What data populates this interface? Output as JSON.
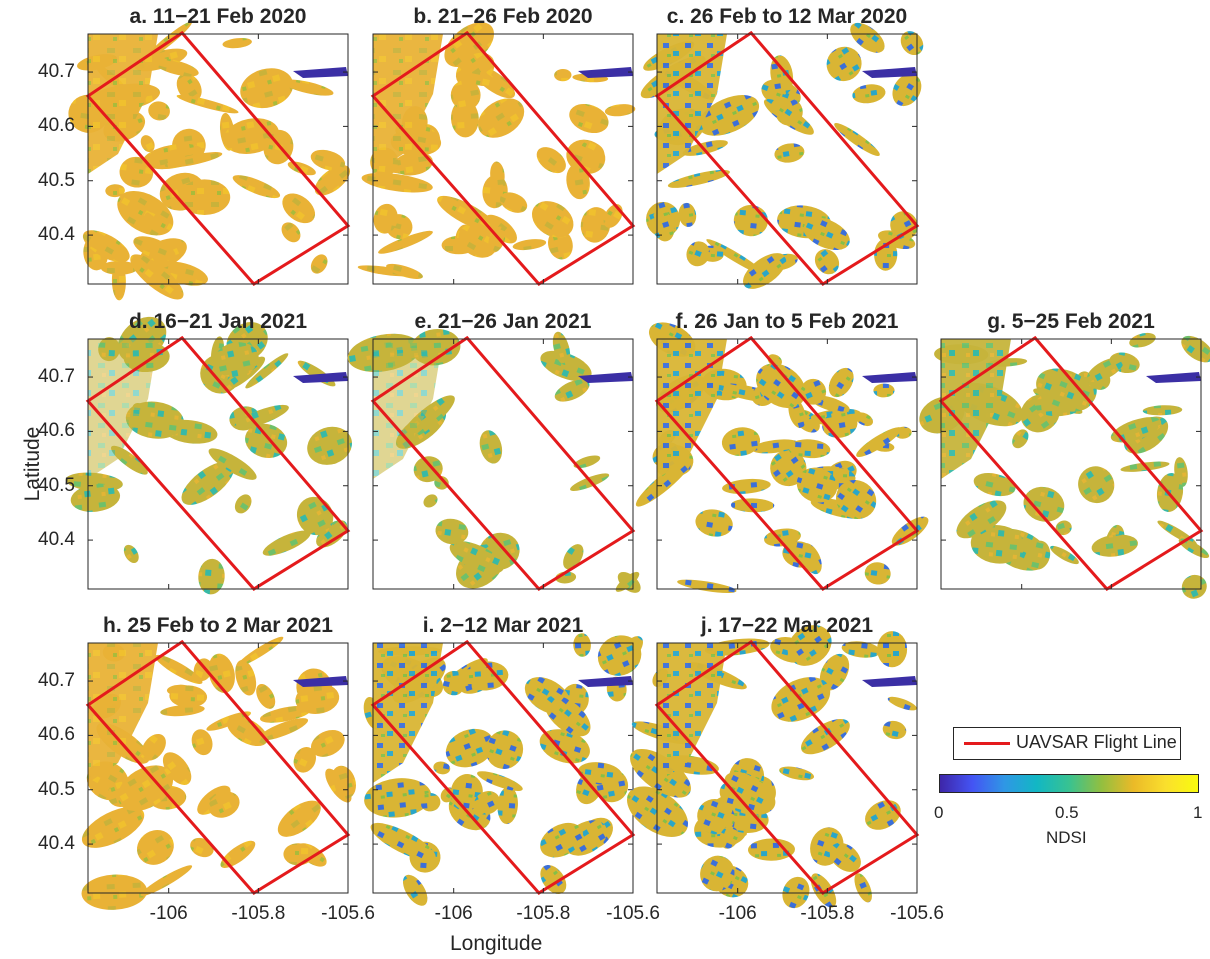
{
  "chart_data": {
    "type": "heatmap",
    "description_kind": "small-multiples map panels",
    "ylabel": "Latitude",
    "xlabel": "Longitude",
    "xlim": [
      -106.18,
      -105.6
    ],
    "ylim": [
      40.31,
      40.77
    ],
    "x_ticks": [
      -106,
      -105.8,
      -105.6
    ],
    "x_tick_labels": [
      "-106",
      "-105.8",
      "-105.6"
    ],
    "y_ticks": [
      40.4,
      40.5,
      40.6,
      40.7
    ],
    "y_tick_labels": [
      "40.4",
      "40.5",
      "40.6",
      "40.7"
    ],
    "colorbar": {
      "label": "NDSI",
      "range": [
        0,
        1
      ],
      "tick_labels": [
        "0",
        "0.5",
        "1"
      ],
      "colormap": [
        "#3e26a8",
        "#4454f4",
        "#2f97e5",
        "#12b7c4",
        "#38c291",
        "#92bf40",
        "#ebba28",
        "#fadf2d",
        "#f9fb0e"
      ]
    },
    "flight_line": {
      "label": "UAVSAR Flight Line",
      "color": "#e41a1c",
      "corners": [
        [
          -106.18,
          40.656
        ],
        [
          -105.97,
          40.772
        ],
        [
          -105.6,
          40.417
        ],
        [
          -105.81,
          40.31
        ]
      ]
    },
    "panels": [
      {
        "title": "a. 11−21 Feb 2020"
      },
      {
        "title": "b. 21−26 Feb 2020"
      },
      {
        "title": "c. 26 Feb to 12 Mar 2020"
      },
      {
        "title": "d. 16−21 Jan 2021"
      },
      {
        "title": "e. 21−26 Jan 2021"
      },
      {
        "title": "f. 26 Jan to 5 Feb 2021"
      },
      {
        "title": "g. 5−25 Feb 2021"
      },
      {
        "title": "h. 25 Feb to 2 Mar 2021"
      },
      {
        "title": "i. 2−12 Mar 2021"
      },
      {
        "title": "j. 17−22 Mar 2021"
      }
    ]
  }
}
